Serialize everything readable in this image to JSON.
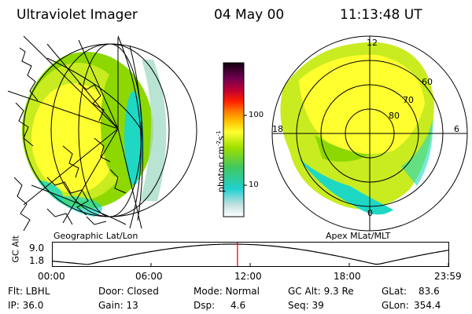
{
  "header": {
    "instrument": "Ultraviolet Imager",
    "date": "04 May 00",
    "time": "11:13:48 UT"
  },
  "colorbar": {
    "unit_label": "photon cm",
    "unit_sup1": "-2",
    "unit_mid": "s",
    "unit_sup2": "-1",
    "ticks": [
      "100",
      "10"
    ]
  },
  "left_panel": {
    "caption": "Geographic Lat/Lon"
  },
  "right_panel": {
    "caption": "Apex MLat/MLT",
    "mlt_labels": {
      "top": "12",
      "left": "18",
      "right": "6",
      "bottom": "0"
    },
    "lat_labels": [
      "60",
      "70",
      "80"
    ]
  },
  "altitude_plot": {
    "ylabel": "GC Alt",
    "yticks": [
      "9.0",
      "1.8"
    ],
    "xticks": [
      "00:00",
      "06:00",
      "12:00",
      "18:00",
      "23:59"
    ],
    "current_time_hours": 11.23
  },
  "footer": {
    "flt": "Flt: LBHL",
    "door": "Door: Closed",
    "mode": "Mode: Normal",
    "gc_alt": "GC Alt: 9.3 Re",
    "glat": "GLat:",
    "glat_val": "83.6",
    "ip": "IP: 36.0",
    "gain": "Gain: 13",
    "dsp": "Dsp:",
    "dsp_val": "4.6",
    "seq": "Seq: 39",
    "glon": "GLon:",
    "glon_val": "354.4"
  },
  "colors": {
    "high": "#ffff30",
    "mid": "#8cd800",
    "low": "#1ed8c4",
    "faint": "#a8dcc8"
  }
}
